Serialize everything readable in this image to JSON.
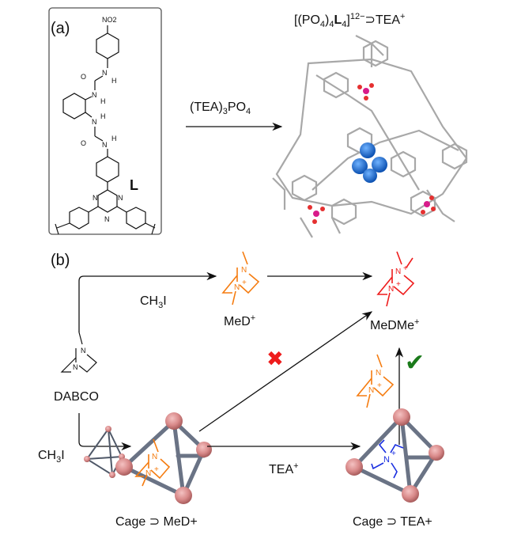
{
  "panel_a": {
    "label": "(a)",
    "ligand_name": "L",
    "ligand_atoms": {
      "nitro": "NO2",
      "o": "O",
      "n": "N",
      "h": "H"
    },
    "reagent": "(TEA)3PO4",
    "product_title": "[(PO4)4L4]12−⊃TEA+"
  },
  "panel_b": {
    "label": "(b)",
    "dabco": "DABCO",
    "reagent_top": "CH3I",
    "reagent_left": "CH3I",
    "med": "MeD+",
    "medme": "MeDMe+",
    "tea": "TEA+",
    "cage_med": "Cage ⊃ MeD+",
    "cage_tea": "Cage ⊃ TEA+",
    "atom_n": "N",
    "plus": "+",
    "blocked_mark": "✖",
    "allowed_mark": "✔"
  },
  "colors": {
    "med": "#f57c10",
    "medme": "#ee1c1c",
    "tea": "#1a2fe0",
    "cage_node": "#d98a8a",
    "cross": "#ee1c1c",
    "check": "#1a7a1a"
  }
}
